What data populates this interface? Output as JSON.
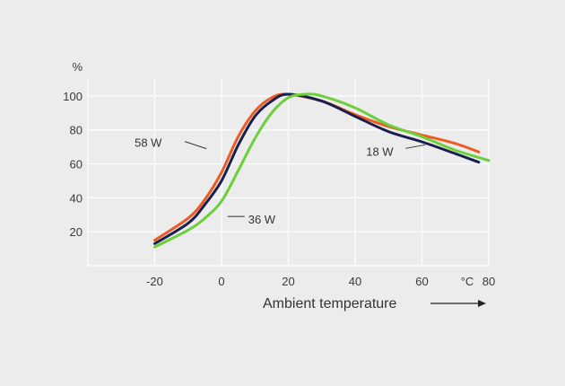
{
  "chart_data": {
    "type": "line",
    "title": "",
    "ylabel": "%",
    "xlabel": "Ambient temperature",
    "x_unit": "°C",
    "xlim": [
      -40,
      80
    ],
    "ylim": [
      0,
      110
    ],
    "x_ticks": [
      -20,
      0,
      20,
      40,
      60,
      80
    ],
    "y_ticks": [
      20,
      40,
      60,
      80,
      100
    ],
    "grid": true,
    "series": [
      {
        "name": "58 W",
        "color": "#ee5a24",
        "x": [
          -20,
          -10,
          -5,
          0,
          5,
          10,
          15,
          20,
          30,
          40,
          50,
          60,
          70,
          77
        ],
        "y": [
          15,
          28,
          39,
          55,
          76,
          91,
          99,
          101,
          97,
          89,
          82,
          77,
          72,
          67
        ]
      },
      {
        "name": "18 W",
        "color": "#1a1f4e",
        "x": [
          -20,
          -10,
          -5,
          0,
          5,
          10,
          15,
          20,
          30,
          40,
          50,
          60,
          70,
          77
        ],
        "y": [
          13,
          25,
          36,
          50,
          71,
          88,
          97,
          101,
          97,
          88,
          79,
          73,
          66,
          61
        ]
      },
      {
        "name": "36 W",
        "color": "#6cd03a",
        "x": [
          -20,
          -10,
          -5,
          0,
          5,
          10,
          15,
          20,
          25,
          30,
          40,
          50,
          60,
          70,
          80
        ],
        "y": [
          11,
          21,
          28,
          38,
          56,
          75,
          90,
          99,
          101,
          100,
          93,
          83,
          76,
          68,
          62
        ]
      }
    ],
    "annotations": [
      {
        "text": "58 W",
        "series": "58 W",
        "x": -4,
        "y": 70
      },
      {
        "text": "36 W",
        "series": "36 W",
        "x": 1,
        "y": 29
      },
      {
        "text": "18 W",
        "series": "18 W",
        "x": 61,
        "y": 67
      }
    ]
  }
}
